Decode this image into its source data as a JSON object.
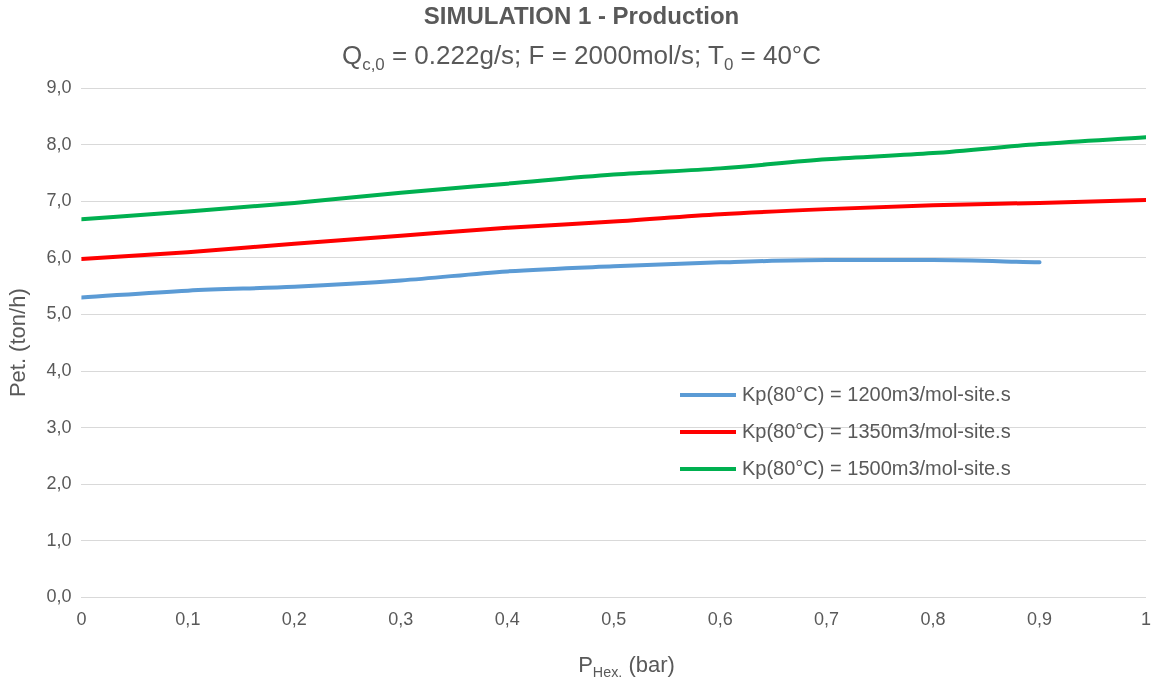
{
  "chart_data": {
    "type": "line",
    "title": "SIMULATION 1 - Production",
    "subtitle": "Q$_{c,0}$ = 0.222g/s; F = 2000mol/s; T$_{0}$ = 40°C",
    "xlabel": "P$_{Hex.}$ (bar)",
    "ylabel": "Pet. (ton/h)",
    "series": [
      {
        "name": "Kp(80°C) = 1200m3/mol-site.s",
        "color": "#5b9bd5",
        "x": [
          0,
          0.1,
          0.2,
          0.3,
          0.4,
          0.5,
          0.6,
          0.7,
          0.8,
          0.9
        ],
        "values": [
          5.3,
          5.42,
          5.49,
          5.6,
          5.76,
          5.85,
          5.92,
          5.96,
          5.96,
          5.92
        ]
      },
      {
        "name": "Kp(80°C) = 1350m3/mol-site.s",
        "color": "#ff0000",
        "x": [
          0,
          0.1,
          0.2,
          0.3,
          0.4,
          0.5,
          0.6,
          0.7,
          0.8,
          0.9,
          1
        ],
        "values": [
          5.98,
          6.1,
          6.25,
          6.39,
          6.53,
          6.64,
          6.77,
          6.86,
          6.93,
          6.97,
          7.02
        ]
      },
      {
        "name": "Kp(80°C) = 1500m3/mol-site.s",
        "color": "#00b050",
        "x": [
          0,
          0.1,
          0.2,
          0.3,
          0.4,
          0.5,
          0.6,
          0.7,
          0.8,
          0.9,
          1
        ],
        "values": [
          6.68,
          6.82,
          6.97,
          7.15,
          7.31,
          7.47,
          7.58,
          7.74,
          7.85,
          8.01,
          8.13
        ]
      }
    ],
    "xlim": [
      0,
      1
    ],
    "xticks": [
      0,
      {
        "value": 0.1,
        "label": "0,1"
      },
      {
        "value": 0.2,
        "label": "0,2"
      },
      {
        "value": 0.3,
        "label": "0,3"
      },
      {
        "value": 0.4,
        "label": "0,4"
      },
      {
        "value": 0.5,
        "label": "0,5"
      },
      {
        "value": 0.6,
        "label": "0,6"
      },
      {
        "value": 0.7,
        "label": "0,7"
      },
      {
        "value": 0.8,
        "label": "0,8"
      },
      {
        "value": 0.9,
        "label": "0,9"
      },
      1
    ],
    "ylim": [
      0,
      9
    ],
    "yticks": [
      {
        "value": 0,
        "label": "0,0"
      },
      {
        "value": 1,
        "label": "1,0"
      },
      {
        "value": 2,
        "label": "2,0"
      },
      {
        "value": 3,
        "label": "3,0"
      },
      {
        "value": 4,
        "label": "4,0"
      },
      {
        "value": 5,
        "label": "5,0"
      },
      {
        "value": 6,
        "label": "6,0"
      },
      {
        "value": 7,
        "label": "7,0"
      },
      {
        "value": 8,
        "label": "8,0"
      },
      {
        "value": 9,
        "label": "9,0"
      }
    ],
    "grid": "y",
    "legend": "right",
    "marker": "none",
    "line_style": "solid"
  }
}
